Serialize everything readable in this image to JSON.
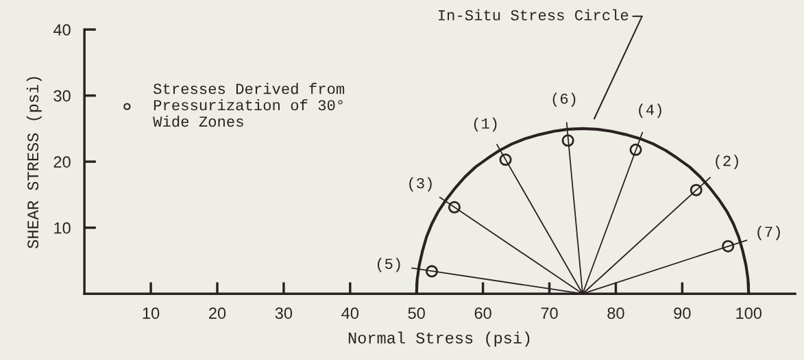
{
  "chart_data": {
    "type": "scatter",
    "xlabel": "Normal Stress (psi)",
    "ylabel": "SHEAR STRESS (psi)",
    "xlim": [
      0,
      107
    ],
    "ylim": [
      0,
      40
    ],
    "xticks": [
      10,
      20,
      30,
      40,
      50,
      60,
      70,
      80,
      90,
      100
    ],
    "yticks": [
      10,
      20,
      30,
      40
    ],
    "grid": false,
    "legend": "top left",
    "series": [
      {
        "marker": "circle",
        "name": "Stresses Derived from\nPressurization of 30°\nWide Zones",
        "color": "#2a2222",
        "x": [
          63.4,
          92.1,
          55.7,
          83.0,
          52.3,
          72.8,
          96.9
        ],
        "values": [
          20.3,
          15.7,
          13.1,
          21.8,
          3.4,
          23.2,
          7.2
        ]
      },
      {
        "type": "line",
        "marker": "none",
        "color": "#2a2222",
        "line_style": "solid",
        "x": [
          50,
          50.1,
          50.4,
          50.9,
          51.5,
          52.3,
          53.3,
          54.5,
          55.9,
          57.3,
          58.9,
          60.7,
          62.5,
          64.4,
          66.4,
          68.5,
          70.7,
          72.8,
          75,
          77.2,
          79.3,
          81.5,
          83.6,
          85.6,
          87.5,
          89.3,
          91.1,
          92.7,
          94.1,
          95.5,
          96.7,
          97.7,
          98.5,
          99.1,
          99.6,
          99.9,
          100
        ],
        "values": [
          0,
          2.2,
          4.3,
          6.5,
          8.6,
          10.6,
          12.5,
          14.3,
          16.1,
          17.7,
          19.2,
          20.5,
          21.7,
          22.7,
          23.5,
          24.1,
          24.6,
          24.9,
          25,
          24.9,
          24.6,
          24.1,
          23.5,
          22.7,
          21.7,
          20.5,
          19.2,
          17.7,
          16.1,
          14.3,
          12.5,
          10.6,
          8.6,
          6.5,
          4.3,
          2.2,
          0
        ]
      },
      {
        "type": "line",
        "marker": "none",
        "color": "#2a2222",
        "line_style": "solid",
        "x": [
          75,
          62.1,
          null,
          75,
          94.2,
          null,
          75,
          53.5,
          null,
          75,
          84.0,
          null,
          75,
          49.3,
          null,
          75,
          72.6,
          null,
          75,
          99.7
        ],
        "values": [
          0,
          22.6,
          null,
          0,
          17.6,
          null,
          0,
          14.6,
          null,
          0,
          24.4,
          null,
          0,
          3.9,
          null,
          0,
          25.9,
          null,
          0,
          8.1
        ]
      }
    ],
    "annotations": [
      "In-Situ Stress Circle",
      {
        "text": "(1)",
        "x": 63.4,
        "y": 20.3
      },
      {
        "text": "(2)",
        "x": 92.1,
        "y": 15.7
      },
      {
        "text": "(3)",
        "x": 55.7,
        "y": 13.1
      },
      {
        "text": "(4)",
        "x": 83.0,
        "y": 21.8
      },
      {
        "text": "(5)",
        "x": 52.3,
        "y": 3.4
      },
      {
        "text": "(6)",
        "x": 72.8,
        "y": 23.2
      },
      {
        "text": "(7)",
        "x": 96.9,
        "y": 7.2
      }
    ]
  }
}
